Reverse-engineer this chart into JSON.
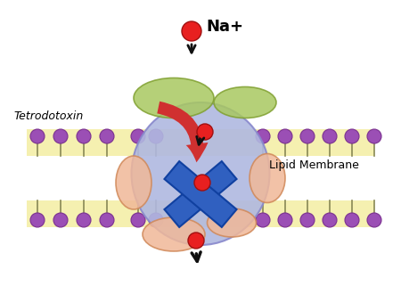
{
  "bg_color": "#ffffff",
  "membrane_color": "#f5f0b0",
  "membrane_outline": "#c8b840",
  "lipid_head_color": "#9b4fb5",
  "lipid_head_outline": "#7a3090",
  "channel_body_color": "#b0b8e0",
  "channel_body_outline": "#8888cc",
  "green_lobe_color": "#a8c860",
  "green_lobe_outline": "#80a030",
  "peach_lobe_color": "#f0b898",
  "peach_lobe_outline": "#d08858",
  "red_arrow_color": "#d03030",
  "blue_x_color": "#3060c0",
  "na_ball_color": "#e82020",
  "na_ball_outline": "#a01010",
  "black_arrow_color": "#101010",
  "tetrodotoxin_arrow_color": "#e05050",
  "title": "Na+",
  "label_tetrodotoxin": "Tetrodotoxin",
  "label_lipid": "Lipid Membrane"
}
